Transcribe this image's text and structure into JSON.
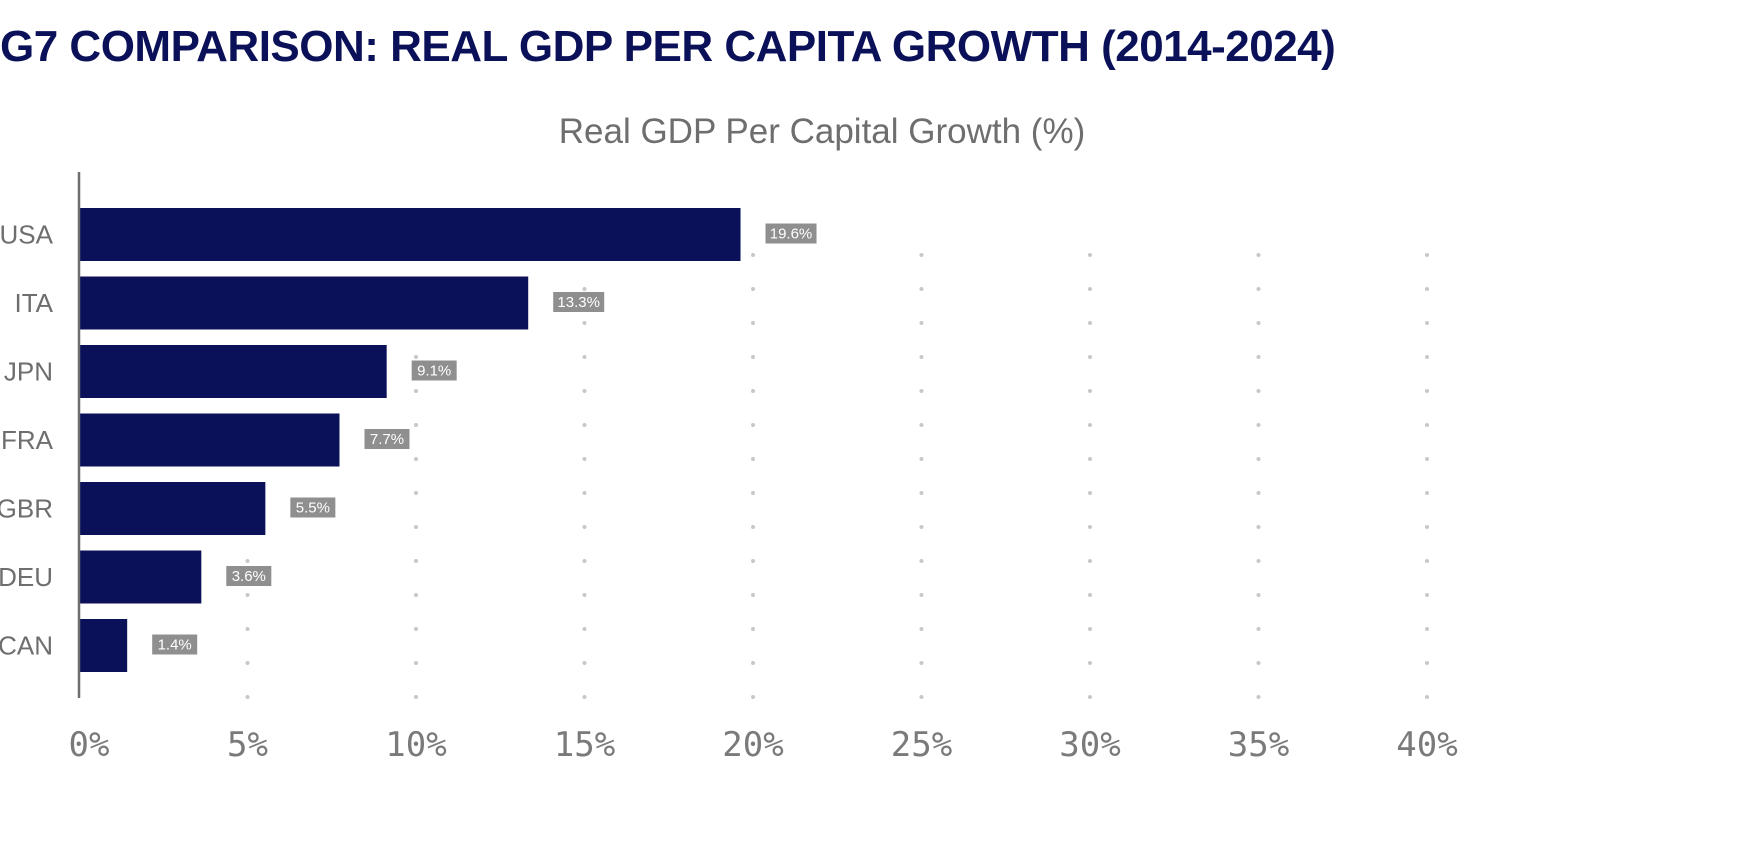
{
  "page": {
    "title": "G7 COMPARISON: REAL GDP PER CAPITA GROWTH (2014-2024)"
  },
  "colors": {
    "title": "#0b1158",
    "bar": "#0b1158",
    "label_box": "#8f8f8f",
    "text_muted": "#6e6e6e",
    "grid_dot": "#c8c8c8",
    "axis": "#6e6e6e"
  },
  "chart_data": {
    "type": "bar",
    "orientation": "horizontal",
    "title": "Real GDP Per Capital Growth (%)",
    "categories": [
      "USA",
      "ITA",
      "JPN",
      "FRA",
      "GBR",
      "DEU",
      "CAN"
    ],
    "values": [
      19.6,
      13.3,
      9.1,
      7.7,
      5.5,
      3.6,
      1.4
    ],
    "value_labels": [
      "19.6%",
      "13.3%",
      "9.1%",
      "7.7%",
      "5.5%",
      "3.6%",
      "1.4%"
    ],
    "xticks": [
      0,
      5,
      10,
      15,
      20,
      25,
      30,
      35,
      40
    ],
    "xtick_labels": [
      "0%",
      "5%",
      "10%",
      "15%",
      "20%",
      "25%",
      "30%",
      "35%",
      "40%"
    ],
    "xlim": [
      0,
      45
    ],
    "grid": "dotted-vertical",
    "xlabel": "",
    "ylabel": ""
  }
}
